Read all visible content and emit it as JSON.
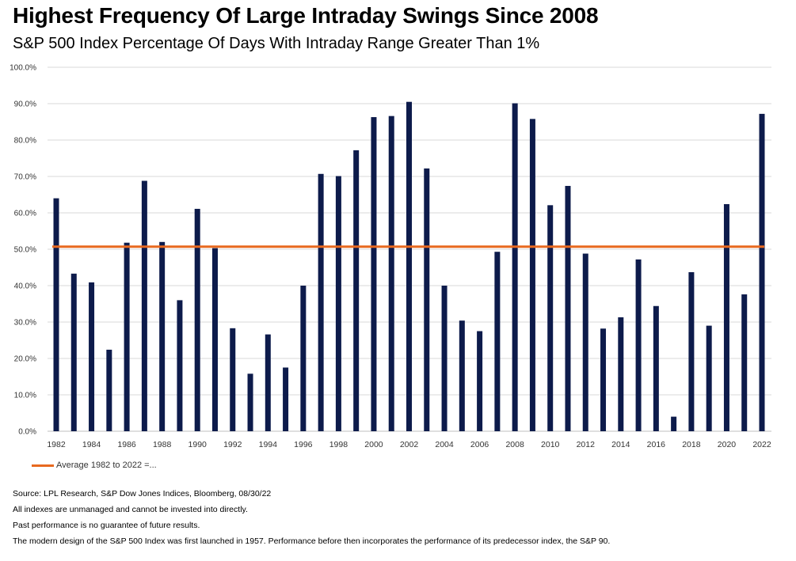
{
  "title": "Highest Frequency Of Large Intraday Swings Since 2008",
  "subtitle": "S&P 500 Index Percentage Of Days With Intraday Range Greater Than 1%",
  "legend": {
    "average_label": "Average 1982 to 2022 =..."
  },
  "footnotes": [
    "Source: LPL Research, S&P Dow Jones Indices, Bloomberg, 08/30/22",
    "All indexes are unmanaged and cannot be invested into directly.",
    "Past performance is no guarantee of future results.",
    "The modern design of the S&P 500 Index was first launched in 1957. Performance before then incorporates the performance of its predecessor index, the S&P 90."
  ],
  "colors": {
    "bar": "#0D1B4B",
    "average_line": "#E8691F",
    "grid": "#D9D9D9"
  },
  "chart_data": {
    "type": "bar",
    "categories": [
      "1982",
      "1983",
      "1984",
      "1985",
      "1986",
      "1987",
      "1988",
      "1989",
      "1990",
      "1991",
      "1992",
      "1993",
      "1994",
      "1995",
      "1996",
      "1997",
      "1998",
      "1999",
      "2000",
      "2001",
      "2002",
      "2003",
      "2004",
      "2005",
      "2006",
      "2007",
      "2008",
      "2009",
      "2010",
      "2011",
      "2012",
      "2013",
      "2014",
      "2015",
      "2016",
      "2017",
      "2018",
      "2019",
      "2020",
      "2021",
      "2022"
    ],
    "x_tick_labels": [
      "1982",
      "1984",
      "1986",
      "1988",
      "1990",
      "1992",
      "1994",
      "1996",
      "1998",
      "2000",
      "2002",
      "2004",
      "2006",
      "2008",
      "2010",
      "2012",
      "2014",
      "2016",
      "2018",
      "2020",
      "2022"
    ],
    "series": [
      {
        "values": [
          64.0,
          43.3,
          40.9,
          22.4,
          51.8,
          68.8,
          52.0,
          36.0,
          61.1,
          50.3,
          28.3,
          15.8,
          26.6,
          17.5,
          40.0,
          70.7,
          70.1,
          77.2,
          86.3,
          86.6,
          90.5,
          72.2,
          40.0,
          30.4,
          27.5,
          49.3,
          90.1,
          85.8,
          62.1,
          67.4,
          48.8,
          28.2,
          31.3,
          47.2,
          34.4,
          4.0,
          43.7,
          29.0,
          62.4,
          37.6,
          87.2
        ]
      }
    ],
    "average_value": 50.7,
    "y_tick_labels": [
      "0.0%",
      "10.0%",
      "20.0%",
      "30.0%",
      "40.0%",
      "50.0%",
      "60.0%",
      "70.0%",
      "80.0%",
      "90.0%",
      "100.0%"
    ],
    "ylim": [
      0,
      100
    ],
    "grid": true,
    "legend_position": "bottom-left"
  }
}
